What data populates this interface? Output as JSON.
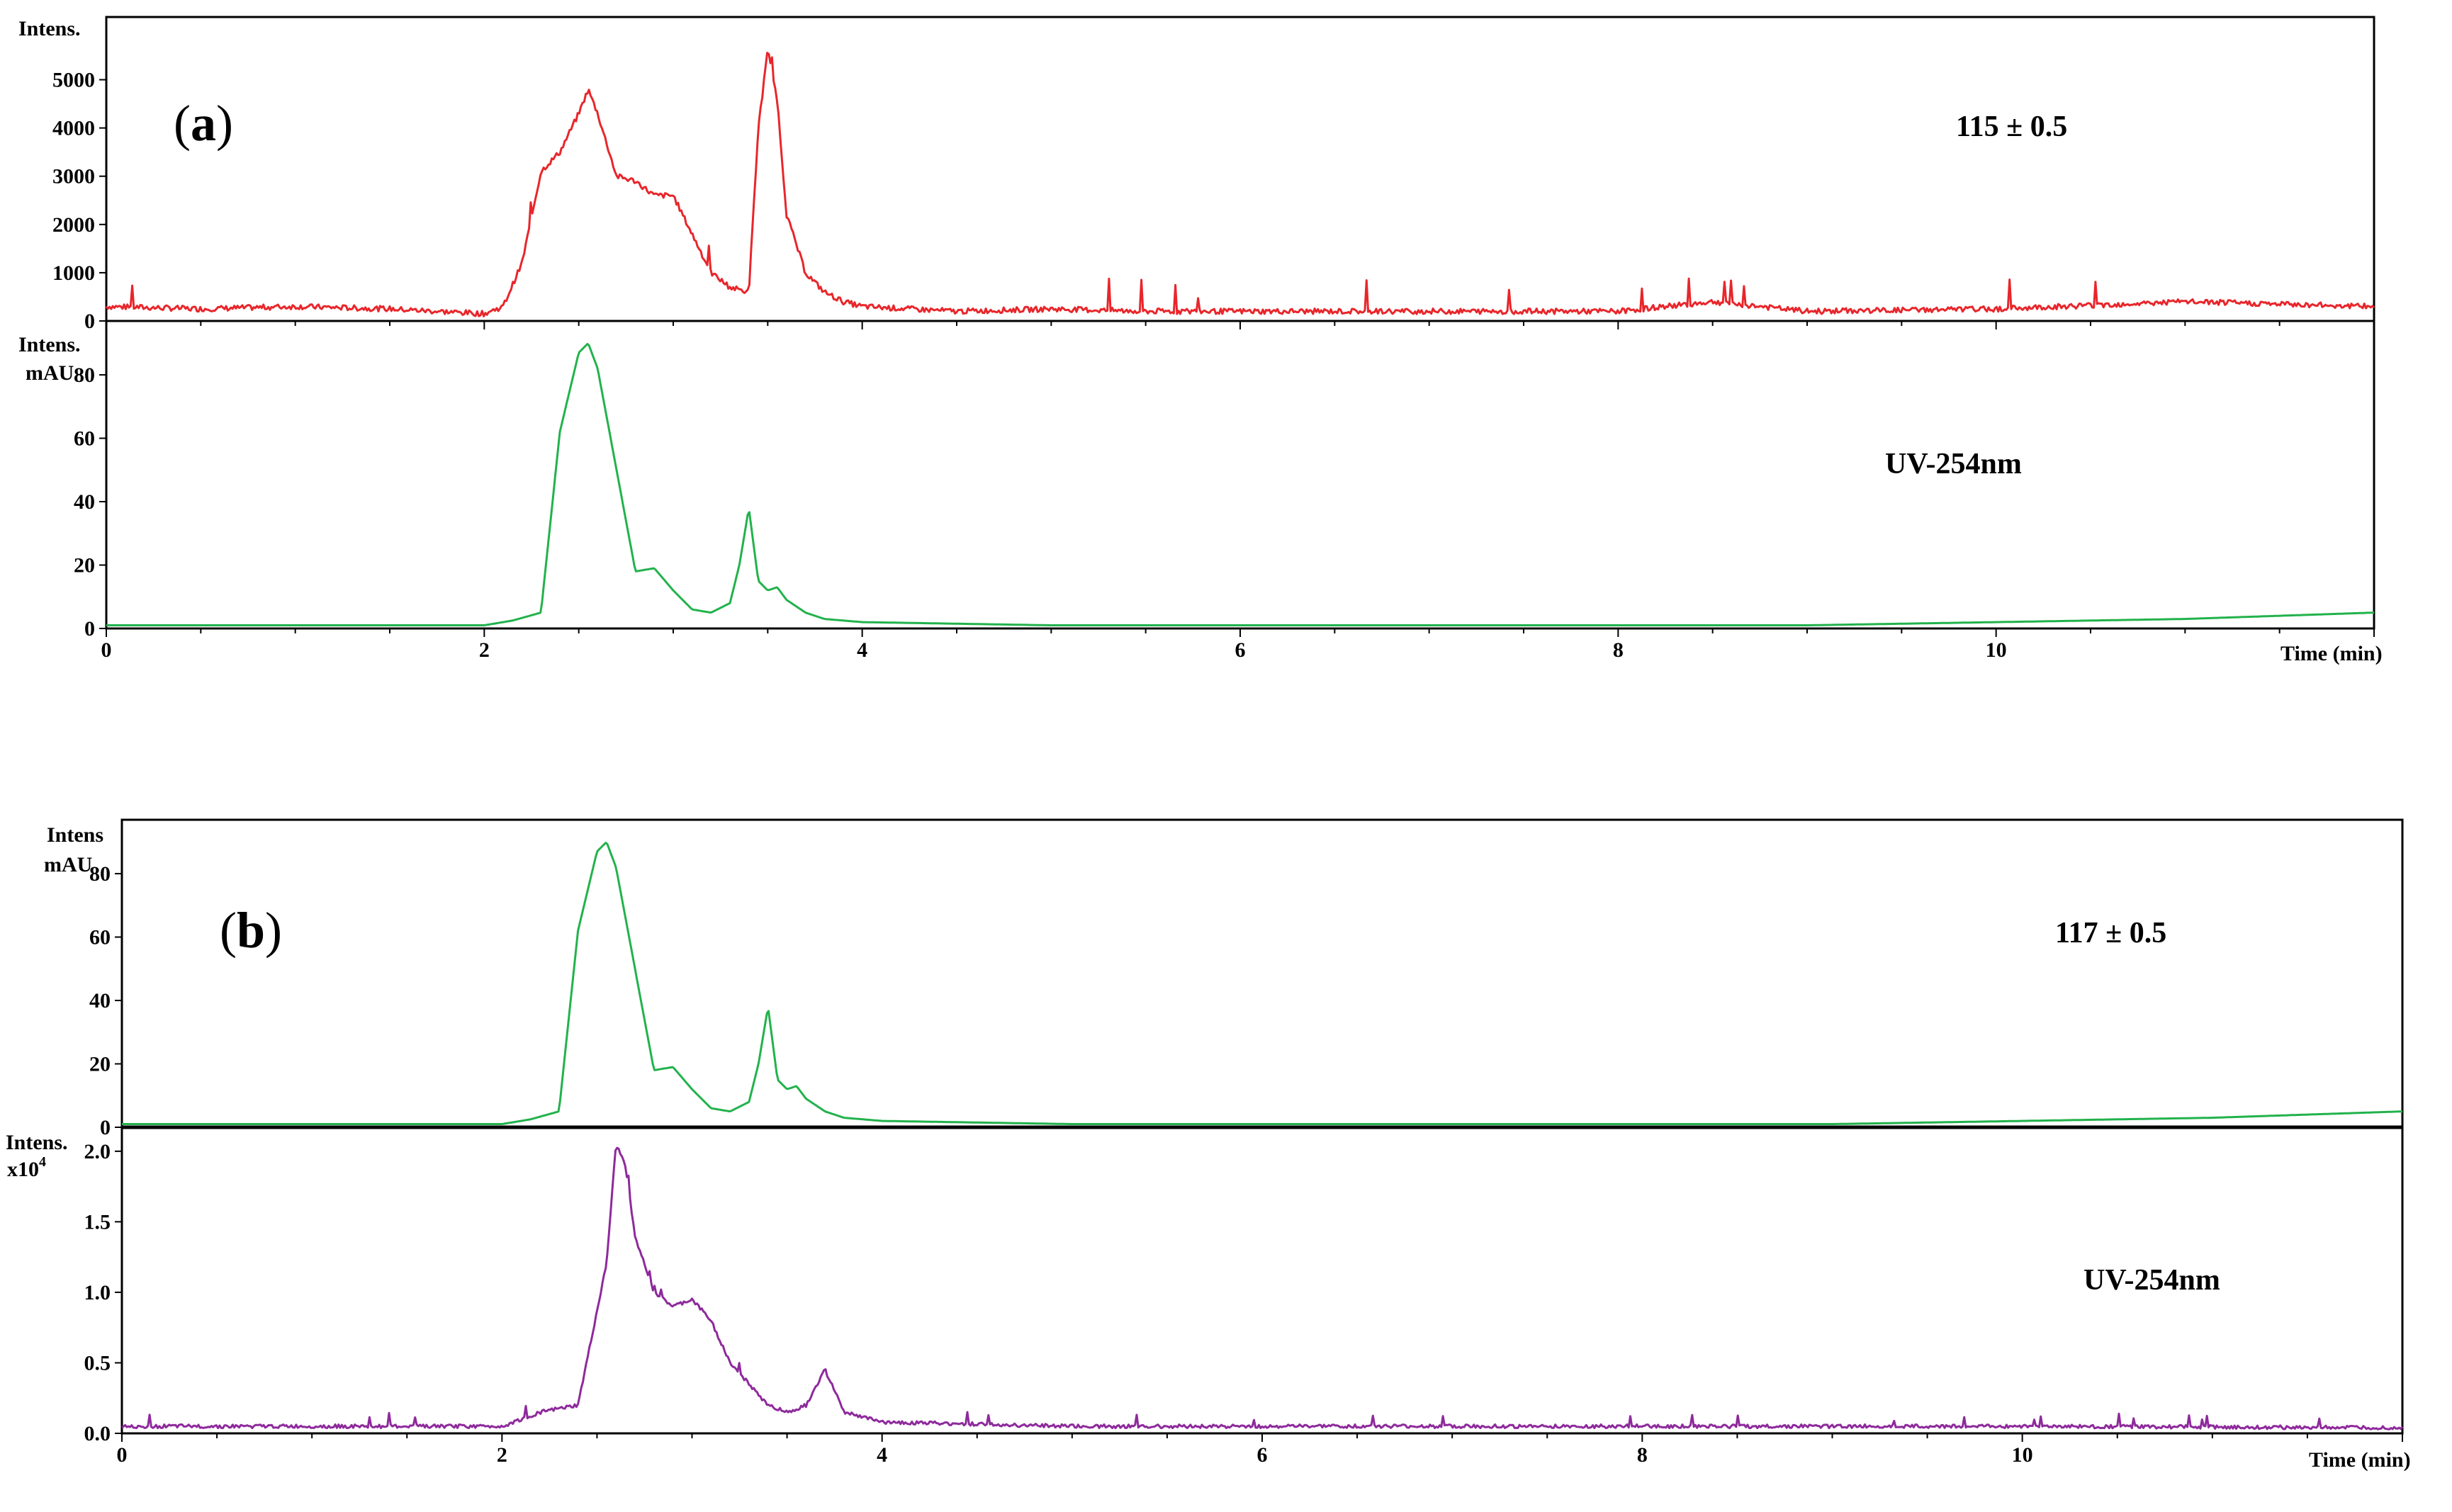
{
  "figure": {
    "panel_a_label": {
      "open": "(",
      "letter": "a",
      "close": ")"
    },
    "panel_b_label": {
      "open": "(",
      "letter": "b",
      "close": ")"
    }
  },
  "chart_data": [
    {
      "type": "line",
      "id": "a-top",
      "ylabel": "Intens.",
      "ylabel2": "",
      "annotation": "115 ± 0.5",
      "color": "#e8262b",
      "xlim": [
        0,
        12
      ],
      "ylim": [
        0,
        6300
      ],
      "yticks": [
        0,
        1000,
        2000,
        3000,
        4000,
        5000
      ],
      "ytick_labels": [
        "0",
        "1000",
        "2000",
        "3000",
        "4000",
        "5000"
      ],
      "x": [
        0,
        0.5,
        1.0,
        1.5,
        2.0,
        2.1,
        2.2,
        2.3,
        2.4,
        2.5,
        2.55,
        2.6,
        2.7,
        2.8,
        2.9,
        3.0,
        3.1,
        3.2,
        3.3,
        3.4,
        3.45,
        3.5,
        3.55,
        3.6,
        3.7,
        3.8,
        3.9,
        4.0,
        4.5,
        5.0,
        5.5,
        6.0,
        7.0,
        8.0,
        8.5,
        9.0,
        10.0,
        11.0,
        12.0
      ],
      "y": [
        300,
        250,
        300,
        250,
        150,
        300,
        1200,
        3100,
        3500,
        4300,
        4800,
        4300,
        3000,
        2900,
        2600,
        2600,
        1800,
        1000,
        700,
        600,
        4000,
        5600,
        4600,
        2200,
        1000,
        600,
        400,
        300,
        200,
        250,
        200,
        200,
        200,
        200,
        400,
        200,
        250,
        400,
        300
      ]
    },
    {
      "type": "line",
      "id": "a-bottom",
      "ylabel": "Intens.",
      "ylabel2": "mAU",
      "annotation": "UV-254nm",
      "color": "#22b24c",
      "xlim": [
        0,
        12
      ],
      "xlabel": "Time (min)",
      "xticks": [
        0,
        2,
        4,
        6,
        8,
        10
      ],
      "xtick_labels": [
        "0",
        "2",
        "4",
        "6",
        "8",
        "10"
      ],
      "ylim": [
        0,
        97
      ],
      "yticks": [
        0,
        20,
        40,
        60,
        80
      ],
      "ytick_labels": [
        "0",
        "20",
        "40",
        "60",
        "80"
      ],
      "x": [
        0,
        0.4,
        2.0,
        2.15,
        2.3,
        2.4,
        2.5,
        2.55,
        2.6,
        2.7,
        2.8,
        2.9,
        3.0,
        3.1,
        3.2,
        3.3,
        3.35,
        3.4,
        3.45,
        3.5,
        3.55,
        3.6,
        3.7,
        3.8,
        4.0,
        5.0,
        6.0,
        8.0,
        9.0,
        10.0,
        11.0,
        12.0
      ],
      "y": [
        1,
        1,
        1,
        2.5,
        5,
        62,
        87,
        90,
        82,
        50,
        18,
        19,
        12,
        6,
        5,
        8,
        20,
        38,
        15,
        12,
        13,
        9,
        5,
        3,
        2,
        1,
        1,
        1,
        1,
        2,
        3,
        5
      ]
    },
    {
      "type": "line",
      "id": "b-top",
      "ylabel": "Intens",
      "ylabel2": "mAU",
      "annotation": "117 ± 0.5",
      "color": "#22b24c",
      "xlim": [
        0,
        12
      ],
      "ylim": [
        0,
        97
      ],
      "yticks": [
        0,
        20,
        40,
        60,
        80
      ],
      "ytick_labels": [
        "0",
        "20",
        "40",
        "60",
        "80"
      ],
      "x": [
        0,
        0.4,
        2.0,
        2.15,
        2.3,
        2.4,
        2.5,
        2.55,
        2.6,
        2.7,
        2.8,
        2.9,
        3.0,
        3.1,
        3.2,
        3.3,
        3.35,
        3.4,
        3.45,
        3.5,
        3.55,
        3.6,
        3.7,
        3.8,
        4.0,
        5.0,
        6.0,
        8.0,
        9.0,
        10.0,
        11.0,
        12.0
      ],
      "y": [
        1,
        1,
        1,
        2.5,
        5,
        62,
        87,
        90,
        82,
        50,
        18,
        19,
        12,
        6,
        5,
        8,
        20,
        38,
        15,
        12,
        13,
        9,
        5,
        3,
        2,
        1,
        1,
        1,
        1,
        2,
        3,
        5
      ]
    },
    {
      "type": "line",
      "id": "b-bottom",
      "ylabel": "Intens.",
      "ylabel2": "x10",
      "ylabel2_exp": "4",
      "annotation": "UV-254nm",
      "color": "#8e2a9c",
      "xlim": [
        0,
        12
      ],
      "xlabel": "Time (min)",
      "xticks": [
        0,
        2,
        4,
        6,
        8,
        10
      ],
      "xtick_labels": [
        "0",
        "2",
        "4",
        "6",
        "8",
        "10"
      ],
      "ylim": [
        0,
        2.17
      ],
      "yticks": [
        0.0,
        0.5,
        1.0,
        1.5,
        2.0
      ],
      "ytick_labels": [
        "0.0",
        "0.5",
        "1.0",
        "1.5",
        "2.0"
      ],
      "x": [
        0,
        1.0,
        2.0,
        2.2,
        2.4,
        2.55,
        2.6,
        2.65,
        2.7,
        2.8,
        2.9,
        3.0,
        3.1,
        3.2,
        3.3,
        3.4,
        3.5,
        3.6,
        3.7,
        3.75,
        3.8,
        4.0,
        5.0,
        6.0,
        8.0,
        10.0,
        12.0
      ],
      "y": [
        0.05,
        0.05,
        0.05,
        0.15,
        0.2,
        1.2,
        2.05,
        1.9,
        1.4,
        1.0,
        0.9,
        0.95,
        0.8,
        0.5,
        0.35,
        0.2,
        0.15,
        0.2,
        0.45,
        0.3,
        0.15,
        0.08,
        0.05,
        0.05,
        0.05,
        0.05,
        0.04
      ]
    }
  ]
}
